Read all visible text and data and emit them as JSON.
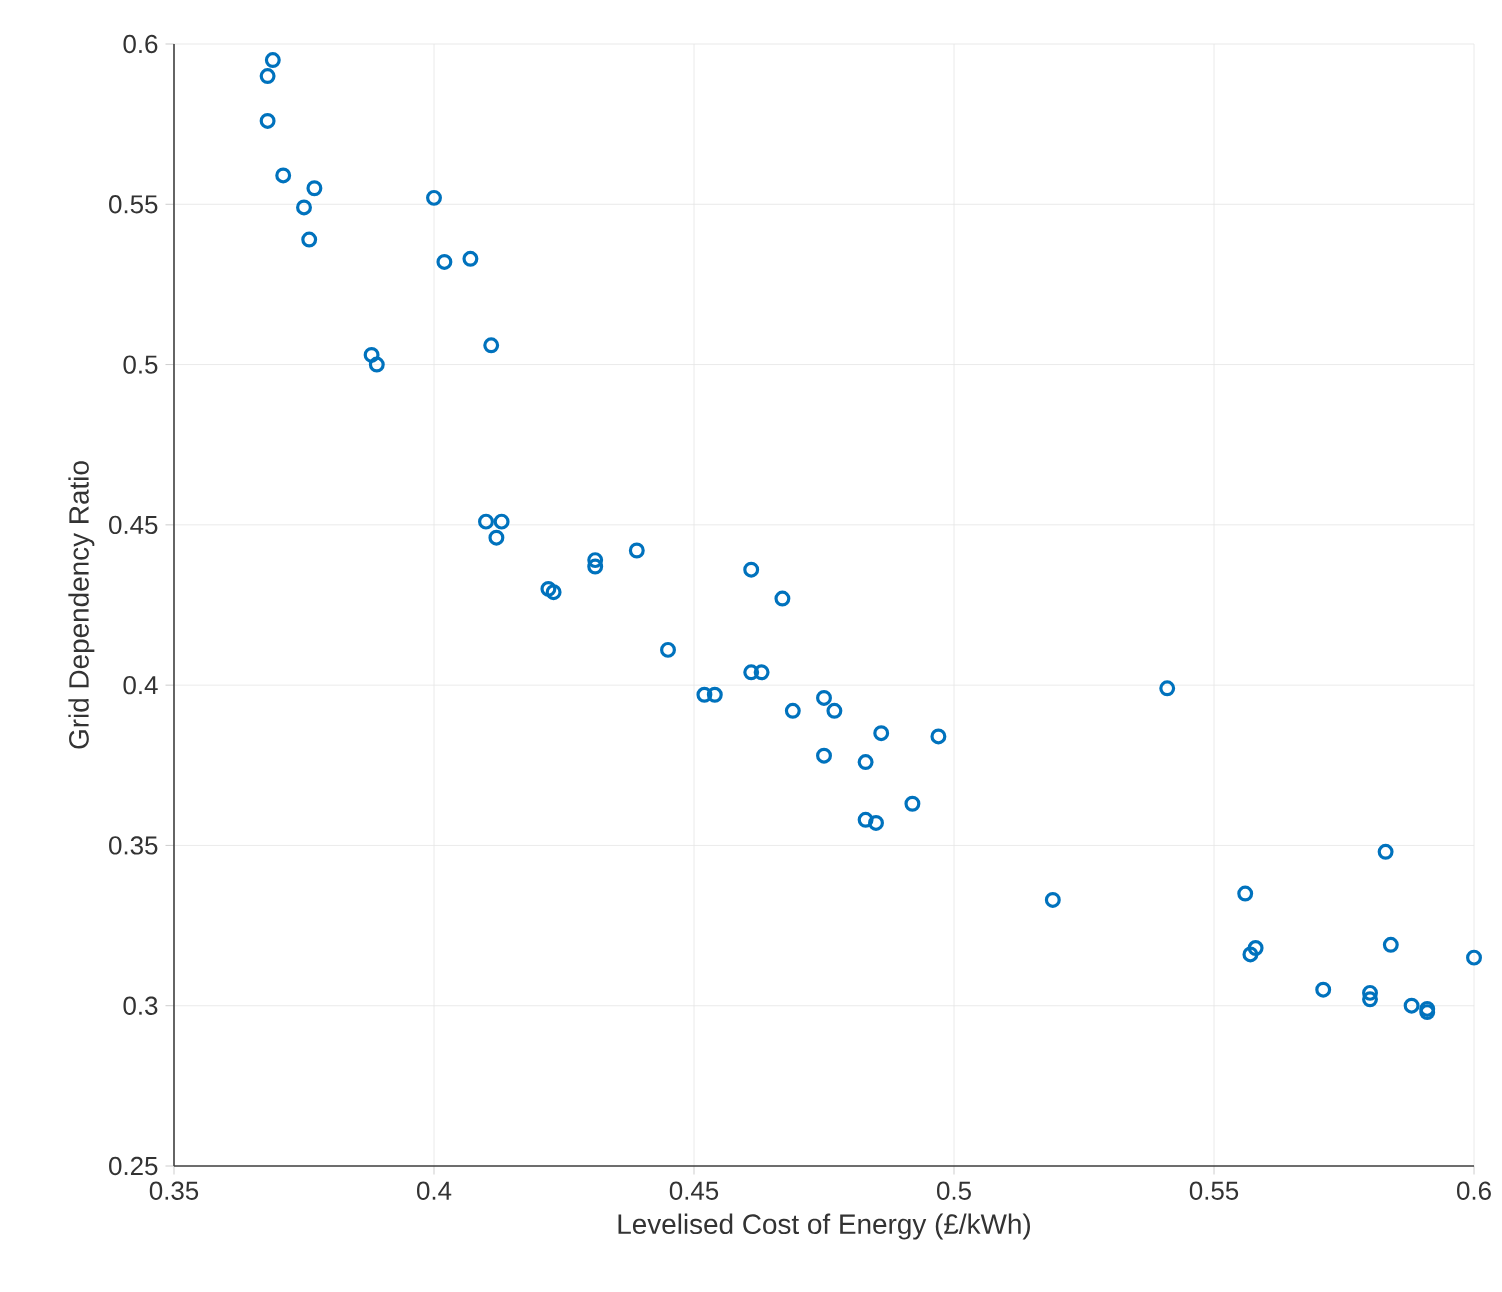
{
  "chart_data": {
    "type": "scatter",
    "xlabel": "Levelised Cost of Energy (£/kWh)",
    "ylabel": "Grid Dependency Ratio",
    "xlim": [
      0.35,
      0.6
    ],
    "ylim": [
      0.25,
      0.6
    ],
    "xticks": [
      0.35,
      0.4,
      0.45,
      0.5,
      0.55,
      0.6
    ],
    "yticks": [
      0.25,
      0.3,
      0.35,
      0.4,
      0.45,
      0.5,
      0.55,
      0.6
    ],
    "grid": true,
    "marker": "circle",
    "color": "#0072bd",
    "x": [
      0.369,
      0.368,
      0.368,
      0.371,
      0.377,
      0.375,
      0.376,
      0.4,
      0.402,
      0.407,
      0.388,
      0.389,
      0.411,
      0.41,
      0.413,
      0.412,
      0.422,
      0.423,
      0.431,
      0.431,
      0.439,
      0.445,
      0.452,
      0.454,
      0.461,
      0.461,
      0.463,
      0.467,
      0.469,
      0.475,
      0.477,
      0.475,
      0.486,
      0.483,
      0.483,
      0.485,
      0.492,
      0.497,
      0.519,
      0.541,
      0.556,
      0.557,
      0.558,
      0.571,
      0.58,
      0.58,
      0.583,
      0.584,
      0.588,
      0.591,
      0.591,
      0.6
    ],
    "values": [
      0.595,
      0.59,
      0.576,
      0.559,
      0.555,
      0.549,
      0.539,
      0.552,
      0.532,
      0.533,
      0.503,
      0.5,
      0.506,
      0.451,
      0.451,
      0.446,
      0.43,
      0.429,
      0.439,
      0.437,
      0.442,
      0.411,
      0.397,
      0.397,
      0.436,
      0.404,
      0.404,
      0.427,
      0.392,
      0.396,
      0.392,
      0.378,
      0.385,
      0.376,
      0.358,
      0.357,
      0.363,
      0.384,
      0.333,
      0.399,
      0.335,
      0.316,
      0.318,
      0.305,
      0.304,
      0.302,
      0.348,
      0.319,
      0.3,
      0.298,
      0.299,
      0.315
    ]
  }
}
